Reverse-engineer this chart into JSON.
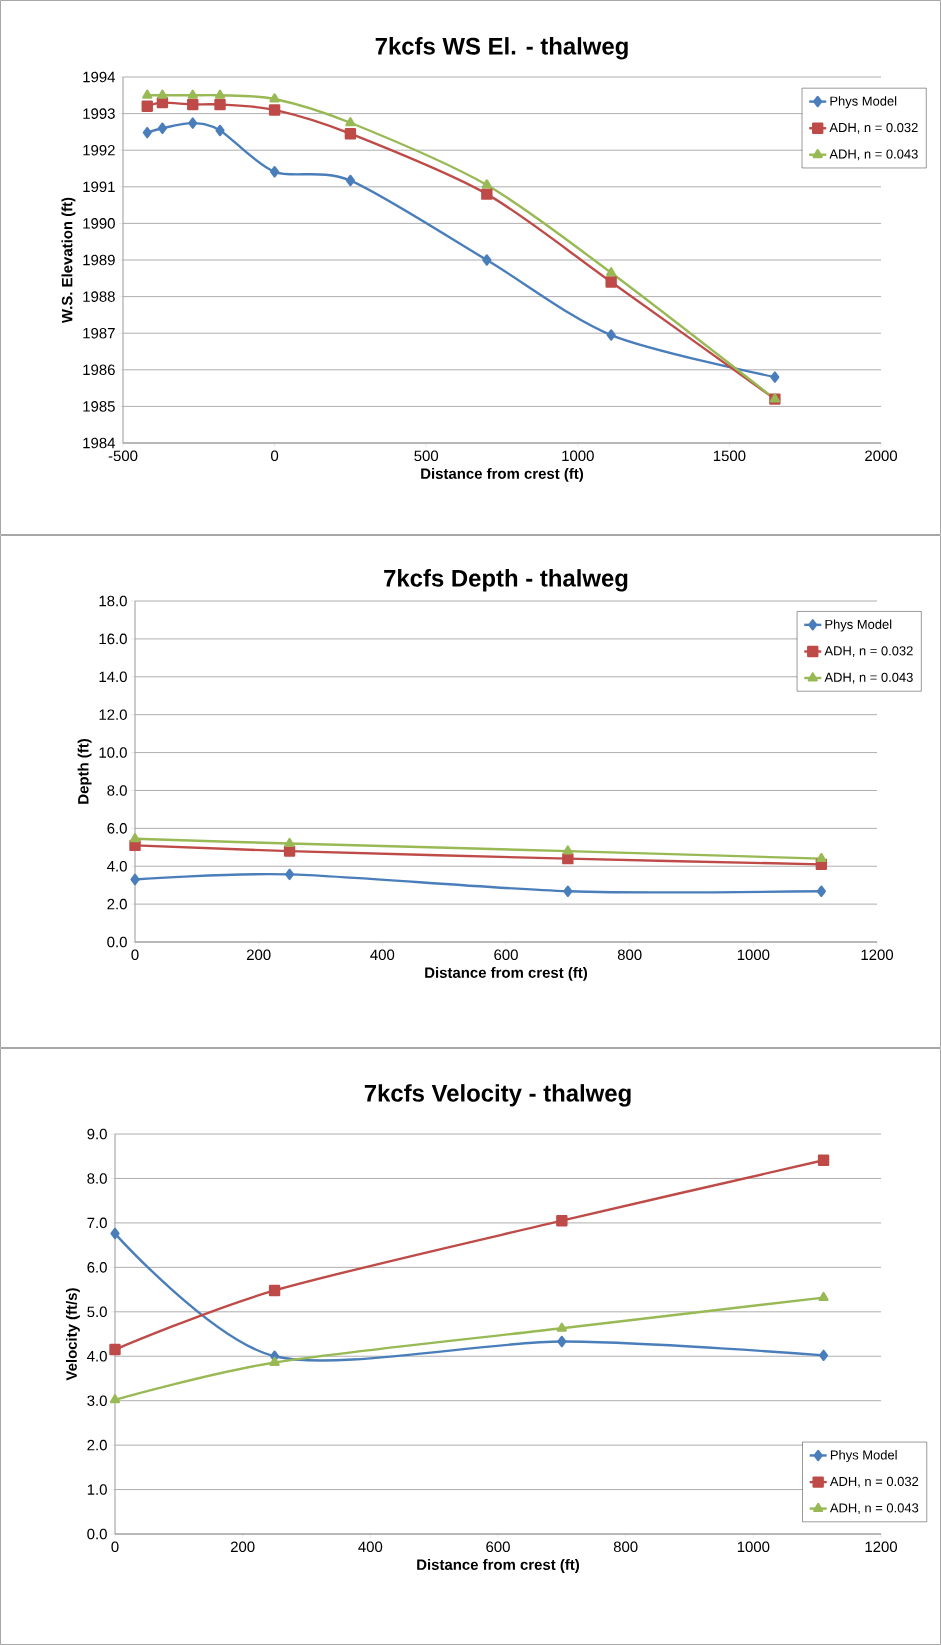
{
  "chart_data": [
    {
      "type": "line",
      "title": "7kcfs WS El. - thalweg",
      "xlabel": "Distance from crest (ft)",
      "ylabel": "W.S. Elevation (ft)",
      "x": [
        -420,
        -370,
        -270,
        -180,
        0,
        250,
        700,
        1110,
        1650
      ],
      "series": [
        {
          "name": "Phys Model",
          "color": "#4a7ebb",
          "marker": "diamond",
          "values": [
            1992.48,
            1992.6,
            1992.74,
            1992.54,
            1991.41,
            1991.17,
            1989.0,
            1986.95,
            1985.8
          ]
        },
        {
          "name": "ADH, n = 0.032",
          "color": "#be4b48",
          "marker": "square",
          "values": [
            1993.2,
            1993.3,
            1993.25,
            1993.25,
            1993.1,
            1992.45,
            1990.8,
            1988.4,
            1985.2
          ]
        },
        {
          "name": "ADH, n = 0.043",
          "color": "#98b954",
          "marker": "triangle",
          "values": [
            1993.5,
            1993.5,
            1993.5,
            1993.5,
            1993.4,
            1992.75,
            1991.05,
            1988.65,
            1985.2
          ]
        }
      ],
      "xlim": [
        -500,
        2000
      ],
      "xticks": [
        -500,
        0,
        500,
        1000,
        1500,
        2000
      ],
      "ylim": [
        1984,
        1994
      ],
      "yticks": [
        1984,
        1985,
        1986,
        1987,
        1988,
        1989,
        1990,
        1991,
        1992,
        1993,
        1994
      ],
      "grid": "y",
      "legend": "top right",
      "line_style": "solid"
    },
    {
      "type": "line",
      "title": "7kcfs Depth - thalweg",
      "xlabel": "Distance from crest (ft)",
      "ylabel": "Depth (ft)",
      "x": [
        0,
        250,
        700,
        1110
      ],
      "series": [
        {
          "name": "Phys Model",
          "color": "#4a7ebb",
          "marker": "diamond",
          "values": [
            3.3,
            3.57,
            2.68,
            2.68
          ]
        },
        {
          "name": "ADH, n = 0.032",
          "color": "#be4b48",
          "marker": "square",
          "values": [
            5.1,
            4.8,
            4.4,
            4.1
          ]
        },
        {
          "name": "ADH, n = 0.043",
          "color": "#98b954",
          "marker": "triangle",
          "values": [
            5.45,
            5.2,
            4.8,
            4.4
          ]
        }
      ],
      "xlim": [
        0,
        1200
      ],
      "xticks": [
        0,
        200,
        400,
        600,
        800,
        1000,
        1200
      ],
      "ylim": [
        0,
        18
      ],
      "yticks": [
        {
          "value": 0,
          "label": "0.0"
        },
        {
          "value": 2,
          "label": "2.0"
        },
        {
          "value": 4,
          "label": "4.0"
        },
        {
          "value": 6,
          "label": "6.0"
        },
        {
          "value": 8,
          "label": "8.0"
        },
        {
          "value": 10,
          "label": "10.0"
        },
        {
          "value": 12,
          "label": "12.0"
        },
        {
          "value": 14,
          "label": "14.0"
        },
        {
          "value": 16,
          "label": "16.0"
        },
        {
          "value": 18,
          "label": "18.0"
        }
      ],
      "grid": "y",
      "legend": "top right",
      "line_style": "solid"
    },
    {
      "type": "line",
      "title": "7kcfs Velocity - thalweg",
      "xlabel": "Distance from crest (ft)",
      "ylabel": "Velocity (ft/s)",
      "x": [
        0,
        250,
        700,
        1110
      ],
      "series": [
        {
          "name": "Phys Model",
          "color": "#4a7ebb",
          "marker": "diamond",
          "values": [
            6.76,
            4.0,
            4.33,
            4.02
          ]
        },
        {
          "name": "ADH, n = 0.032",
          "color": "#be4b48",
          "marker": "square",
          "values": [
            4.15,
            5.48,
            7.05,
            8.41
          ]
        },
        {
          "name": "ADH, n = 0.043",
          "color": "#98b954",
          "marker": "triangle",
          "values": [
            3.02,
            3.86,
            4.63,
            5.32
          ]
        }
      ],
      "xlim": [
        0,
        1200
      ],
      "xticks": [
        0,
        200,
        400,
        600,
        800,
        1000,
        1200
      ],
      "ylim": [
        0,
        9
      ],
      "yticks": [
        {
          "value": 0,
          "label": "0.0"
        },
        {
          "value": 1,
          "label": "1.0"
        },
        {
          "value": 2,
          "label": "2.0"
        },
        {
          "value": 3,
          "label": "3.0"
        },
        {
          "value": 4,
          "label": "4.0"
        },
        {
          "value": 5,
          "label": "5.0"
        },
        {
          "value": 6,
          "label": "6.0"
        },
        {
          "value": 7,
          "label": "7.0"
        },
        {
          "value": 8,
          "label": "8.0"
        },
        {
          "value": 9,
          "label": "9.0"
        }
      ],
      "grid": "y",
      "legend": "bottom right",
      "line_style": "solid"
    }
  ]
}
